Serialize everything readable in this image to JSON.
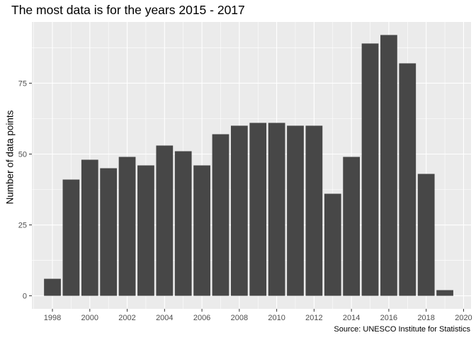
{
  "chart_data": {
    "type": "bar",
    "title": "The most data is for the years 2015 - 2017",
    "caption": "Source: UNESCO Institute for Statistics",
    "xlabel": "",
    "ylabel": "Number of data points",
    "x": [
      1998,
      1999,
      2000,
      2001,
      2002,
      2003,
      2004,
      2005,
      2006,
      2007,
      2008,
      2009,
      2010,
      2011,
      2012,
      2013,
      2014,
      2015,
      2016,
      2017,
      2018,
      2019
    ],
    "values": [
      6,
      41,
      48,
      45,
      49,
      46,
      53,
      51,
      46,
      57,
      60,
      61,
      61,
      60,
      60,
      36,
      49,
      89,
      92,
      82,
      43,
      2
    ],
    "xlim": [
      1996.9,
      2020.4
    ],
    "ylim": [
      -4.6,
      96.6
    ],
    "xticks": [
      1998,
      2000,
      2002,
      2004,
      2006,
      2008,
      2010,
      2012,
      2014,
      2016,
      2018,
      2020
    ],
    "yticks": [
      0,
      25,
      50,
      75
    ],
    "grid": true,
    "colors": {
      "panel": "#ebebeb",
      "grid": "#ffffff",
      "bar": "#474747",
      "tick": "#4d4d4d"
    }
  }
}
